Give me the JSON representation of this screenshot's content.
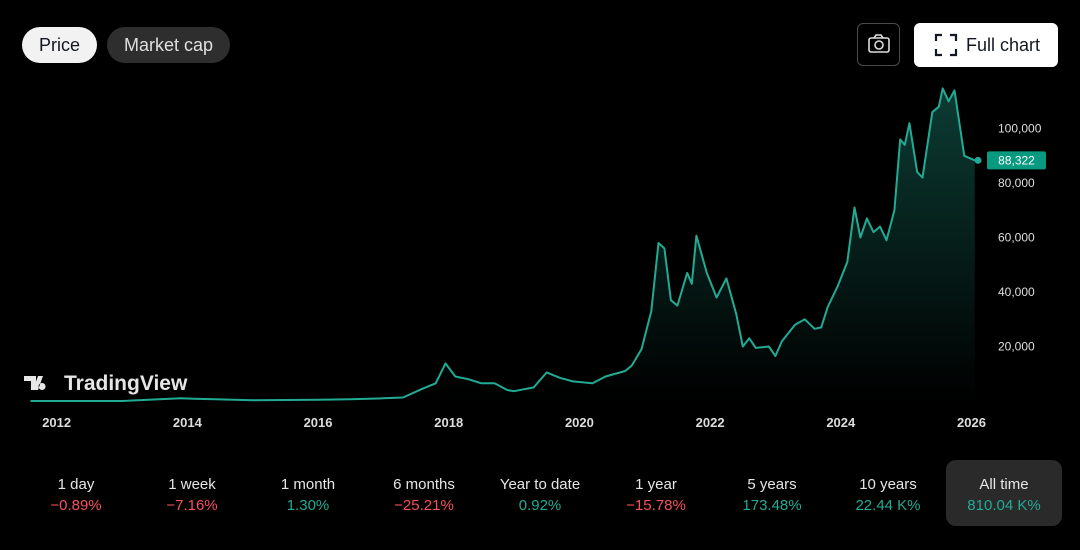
{
  "tabs": [
    "Price",
    "Market cap"
  ],
  "full_chart_button": "Full chart",
  "logo_text": "TradingView",
  "chart_data": {
    "type": "line",
    "color": "#22ab94",
    "x": [
      2011.6,
      2012.0,
      2013.0,
      2013.9,
      2014.1,
      2014.5,
      2015.0,
      2016.0,
      2016.5,
      2017.0,
      2017.3,
      2017.6,
      2017.8,
      2017.95,
      2018.1,
      2018.3,
      2018.5,
      2018.7,
      2018.9,
      2019.0,
      2019.3,
      2019.5,
      2019.7,
      2019.9,
      2020.2,
      2020.4,
      2020.7,
      2020.8,
      2020.95,
      2021.1,
      2021.21,
      2021.3,
      2021.4,
      2021.5,
      2021.65,
      2021.72,
      2021.79,
      2021.95,
      2022.1,
      2022.25,
      2022.4,
      2022.5,
      2022.6,
      2022.7,
      2022.9,
      2023.0,
      2023.1,
      2023.3,
      2023.45,
      2023.6,
      2023.7,
      2023.8,
      2023.95,
      2024.1,
      2024.21,
      2024.3,
      2024.4,
      2024.5,
      2024.6,
      2024.7,
      2024.82,
      2024.91,
      2024.98,
      2025.05,
      2025.17,
      2025.25,
      2025.4,
      2025.5,
      2025.56,
      2025.65,
      2025.74,
      2025.89,
      2026.05
    ],
    "values": [
      10,
      5,
      13,
      1000,
      800,
      600,
      250,
      430,
      650,
      1000,
      1300,
      4500,
      6500,
      13800,
      9000,
      8000,
      6500,
      6500,
      4000,
      3600,
      5000,
      10500,
      8500,
      7200,
      6500,
      9000,
      11000,
      13000,
      19000,
      33000,
      58000,
      56000,
      37000,
      35000,
      47000,
      43000,
      60700,
      47000,
      38000,
      45000,
      32000,
      20000,
      23000,
      19500,
      20000,
      16500,
      22000,
      28000,
      30000,
      26500,
      27000,
      34500,
      42000,
      51000,
      71000,
      60000,
      67000,
      62000,
      64000,
      59000,
      70000,
      96000,
      94000,
      102000,
      84000,
      82000,
      106000,
      108000,
      114700,
      110000,
      114000,
      90000,
      88322
    ],
    "xlim": [
      2011.5,
      2026.1
    ],
    "xticks": [
      2012,
      2014,
      2016,
      2018,
      2020,
      2022,
      2024,
      2026
    ],
    "ylim": [
      0,
      117800
    ],
    "yticks": [
      {
        "value": 20000,
        "label": "20,000"
      },
      {
        "value": 40000,
        "label": "40,000"
      },
      {
        "value": 60000,
        "label": "60,000"
      },
      {
        "value": 80000,
        "label": "80,000"
      },
      {
        "value": 100000,
        "label": "100,000"
      }
    ],
    "current_value": 88322,
    "current_label": "88,322"
  },
  "periods": [
    {
      "label": "1 day",
      "change": "−0.89%",
      "color": "#f7525f"
    },
    {
      "label": "1 week",
      "change": "−7.16%",
      "color": "#f7525f"
    },
    {
      "label": "1 month",
      "change": "1.30%",
      "color": "#22ab94"
    },
    {
      "label": "6 months",
      "change": "−25.21%",
      "color": "#f7525f"
    },
    {
      "label": "Year to date",
      "change": "0.92%",
      "color": "#22ab94"
    },
    {
      "label": "1 year",
      "change": "−15.78%",
      "color": "#f7525f"
    },
    {
      "label": "5 years",
      "change": "173.48%",
      "color": "#22ab94"
    },
    {
      "label": "10 years",
      "change": "22.44 K%",
      "color": "#22ab94"
    },
    {
      "label": "All time",
      "change": "810.04 K%",
      "color": "#22ab94"
    }
  ]
}
